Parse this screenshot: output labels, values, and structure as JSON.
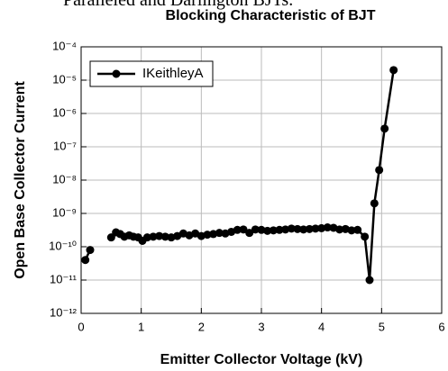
{
  "context_text": "Paralleled and Darlington BJTs.",
  "chart_data": {
    "type": "line",
    "title": "Blocking Characteristic of BJT",
    "x_label": "Emitter Collector Voltage (kV)",
    "y_label": "Open Base Collector Current",
    "xlim": [
      0,
      6
    ],
    "xticks": [
      0,
      1,
      2,
      3,
      4,
      5,
      6
    ],
    "ylim": [
      1e-12,
      0.0001
    ],
    "ylog": true,
    "yticks": [
      {
        "value": 1e-12,
        "label": "10⁻¹²"
      },
      {
        "value": 1e-11,
        "label": "10⁻¹¹"
      },
      {
        "value": 1e-10,
        "label": "10⁻¹⁰"
      },
      {
        "value": 1e-09,
        "label": "10⁻⁹"
      },
      {
        "value": 1e-08,
        "label": "10⁻⁸"
      },
      {
        "value": 1e-07,
        "label": "10⁻⁷"
      },
      {
        "value": 1e-06,
        "label": "10⁻⁶"
      },
      {
        "value": 1e-05,
        "label": "10⁻⁵"
      },
      {
        "value": 0.0001,
        "label": "10⁻⁴"
      }
    ],
    "grid": true,
    "legend": "upper left",
    "x": [
      0.07,
      0.15,
      0.3,
      0.5,
      0.58,
      0.65,
      0.72,
      0.8,
      0.87,
      0.95,
      1.02,
      1.1,
      1.2,
      1.3,
      1.4,
      1.5,
      1.6,
      1.7,
      1.8,
      1.9,
      2.0,
      2.1,
      2.2,
      2.3,
      2.4,
      2.5,
      2.6,
      2.7,
      2.8,
      2.9,
      3.0,
      3.1,
      3.2,
      3.3,
      3.4,
      3.5,
      3.6,
      3.7,
      3.8,
      3.9,
      4.0,
      4.1,
      4.2,
      4.3,
      4.4,
      4.5,
      4.6,
      4.72,
      4.8,
      4.88,
      4.96,
      5.05,
      5.2
    ],
    "series": [
      {
        "name": "IKeithleyA",
        "color": "#000000",
        "values": [
          4e-11,
          8e-11,
          null,
          1.9e-10,
          2.7e-10,
          2.4e-10,
          2e-10,
          2.2e-10,
          2e-10,
          1.9e-10,
          1.5e-10,
          1.9e-10,
          2e-10,
          2.1e-10,
          2e-10,
          1.9e-10,
          2.1e-10,
          2.5e-10,
          2.2e-10,
          2.5e-10,
          2.1e-10,
          2.3e-10,
          2.4e-10,
          2.6e-10,
          2.5e-10,
          2.8e-10,
          3.2e-10,
          3.3e-10,
          2.6e-10,
          3.3e-10,
          3.2e-10,
          3e-10,
          3.1e-10,
          3.2e-10,
          3.3e-10,
          3.5e-10,
          3.4e-10,
          3.3e-10,
          3.4e-10,
          3.5e-10,
          3.6e-10,
          3.8e-10,
          3.7e-10,
          3.3e-10,
          3.4e-10,
          3.1e-10,
          3.2e-10,
          2e-10,
          1e-11,
          2e-09,
          2e-08,
          3.5e-07,
          2e-05
        ]
      }
    ]
  }
}
